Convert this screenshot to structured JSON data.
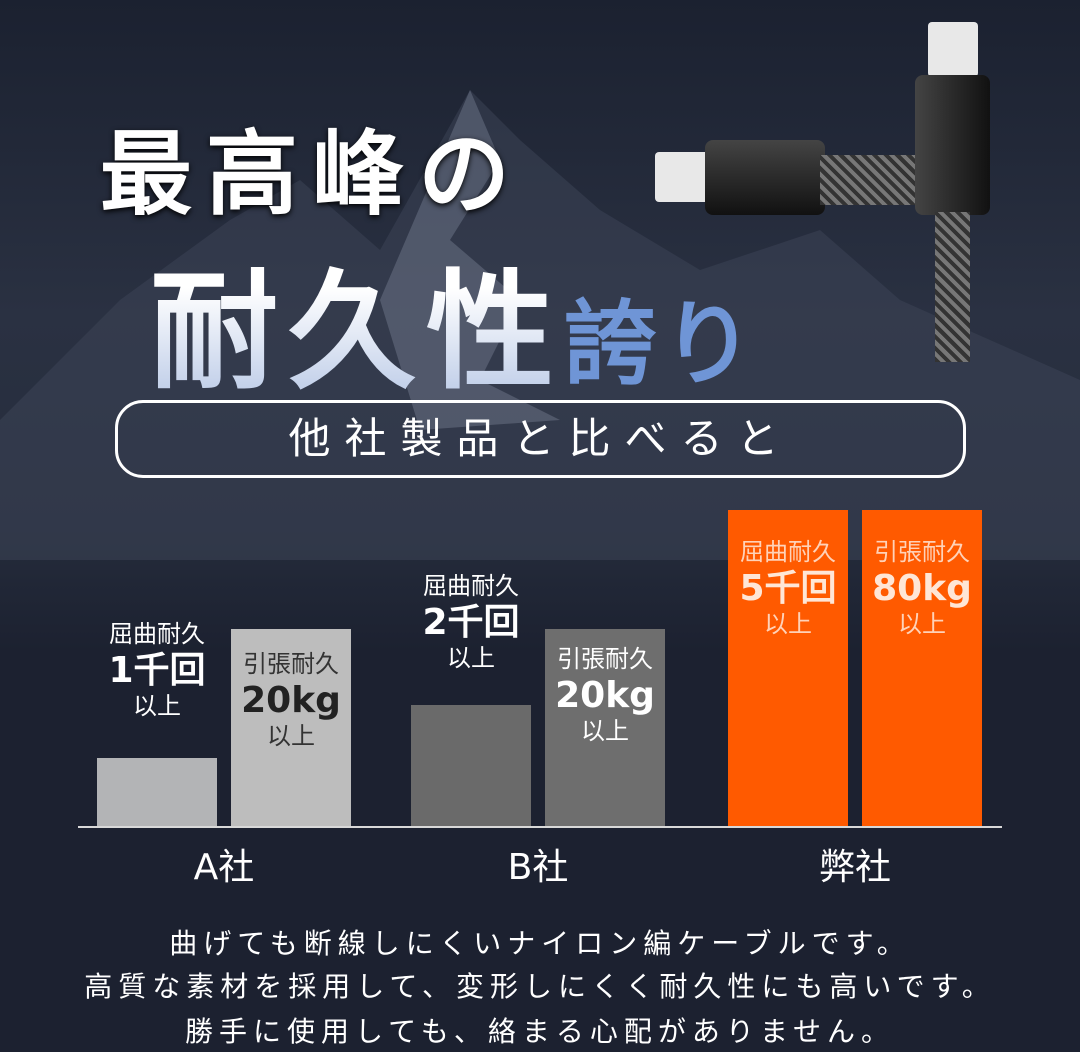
{
  "headline": {
    "line1": "最高峰の",
    "line2_main": "耐久性",
    "line2_accent": "誇り"
  },
  "subheadline": "他社製品と比べると",
  "chart_data": {
    "type": "bar",
    "categories": [
      "A社",
      "B社",
      "弊社"
    ],
    "series": [
      {
        "name": "屈曲耐久",
        "values": [
          1,
          2,
          5
        ],
        "labels": [
          "1千回",
          "2千回",
          "5千回"
        ],
        "unit": "千回"
      },
      {
        "name": "引張耐久",
        "values": [
          20,
          20,
          80
        ],
        "labels": [
          "20kg",
          "20kg",
          "80kg"
        ],
        "unit": "kg"
      }
    ],
    "suffix": "以上",
    "colors": {
      "A社": [
        "#b3b4b6",
        "#bdbdbd"
      ],
      "B社": [
        "#6a6a6a",
        "#6e6e6e"
      ],
      "弊社": [
        "#ff5a00",
        "#ff5a00"
      ]
    },
    "grid": false
  },
  "description": [
    "曲げても断線しにくいナイロン編ケーブルです。",
    "高質な素材を採用して、変形しにくく耐久性にも高いです。",
    "勝手に使用しても、絡まる心配がありません。"
  ],
  "colors": {
    "background": "#1d2230",
    "accent": "#ff5a00",
    "title_blue": "#6f95d6"
  }
}
